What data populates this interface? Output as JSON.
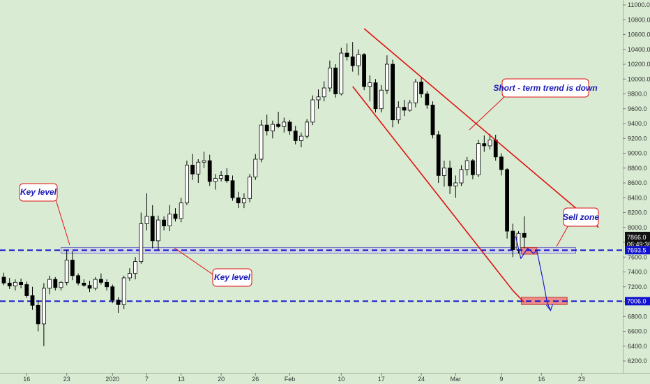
{
  "chart_data": {
    "type": "candlestick",
    "y_ticks": [
      6200,
      6400,
      6600,
      6800,
      7000,
      7200,
      7400,
      7600,
      7800,
      8000,
      8200,
      8400,
      8600,
      8800,
      9000,
      9200,
      9400,
      9600,
      9800,
      10000,
      10200,
      10400,
      10600,
      10800,
      11000
    ],
    "y_tick_labels": [
      "6200.0",
      "6400.0",
      "6600.0",
      "6800.0",
      "7000.0",
      "7200.0",
      "7400.0",
      "7600.0",
      "7800.0",
      "8000.0",
      "8200.0",
      "8400.0",
      "8600.0",
      "8800.0",
      "9000.0",
      "9200.0",
      "9400.0",
      "9600.0",
      "9800.0",
      "10000.0",
      "10200.0",
      "10400.0",
      "10600.0",
      "10800.0",
      "11000.0"
    ],
    "ylim": [
      6050,
      11100
    ],
    "x_labels": [
      {
        "label": "16",
        "i": 4
      },
      {
        "label": "23",
        "i": 11
      },
      {
        "label": "2020",
        "i": 19
      },
      {
        "label": "7",
        "i": 25
      },
      {
        "label": "13",
        "i": 31
      },
      {
        "label": "20",
        "i": 38
      },
      {
        "label": "26",
        "i": 44
      },
      {
        "label": "Feb",
        "i": 50
      },
      {
        "label": "10",
        "i": 59
      },
      {
        "label": "17",
        "i": 66
      },
      {
        "label": "24",
        "i": 73
      },
      {
        "label": "Mar",
        "i": 79
      },
      {
        "label": "9",
        "i": 87
      },
      {
        "label": "16",
        "i": 94
      },
      {
        "label": "23",
        "i": 101
      }
    ],
    "candles": [
      {
        "i": 0,
        "o": 7330,
        "h": 7390,
        "l": 7220,
        "c": 7250
      },
      {
        "i": 1,
        "o": 7250,
        "h": 7320,
        "l": 7170,
        "c": 7210
      },
      {
        "i": 2,
        "o": 7210,
        "h": 7300,
        "l": 7150,
        "c": 7260
      },
      {
        "i": 3,
        "o": 7260,
        "h": 7310,
        "l": 7180,
        "c": 7230
      },
      {
        "i": 4,
        "o": 7230,
        "h": 7270,
        "l": 7050,
        "c": 7080
      },
      {
        "i": 5,
        "o": 7080,
        "h": 7200,
        "l": 6890,
        "c": 6950
      },
      {
        "i": 6,
        "o": 6950,
        "h": 7020,
        "l": 6600,
        "c": 6700
      },
      {
        "i": 7,
        "o": 6700,
        "h": 7250,
        "l": 6400,
        "c": 7180
      },
      {
        "i": 8,
        "o": 7180,
        "h": 7350,
        "l": 7100,
        "c": 7300
      },
      {
        "i": 9,
        "o": 7300,
        "h": 7330,
        "l": 7150,
        "c": 7190
      },
      {
        "i": 10,
        "o": 7190,
        "h": 7280,
        "l": 7150,
        "c": 7260
      },
      {
        "i": 11,
        "o": 7260,
        "h": 7700,
        "l": 7220,
        "c": 7560
      },
      {
        "i": 12,
        "o": 7560,
        "h": 7680,
        "l": 7290,
        "c": 7350
      },
      {
        "i": 13,
        "o": 7350,
        "h": 7380,
        "l": 7220,
        "c": 7250
      },
      {
        "i": 14,
        "o": 7250,
        "h": 7300,
        "l": 7200,
        "c": 7220
      },
      {
        "i": 15,
        "o": 7220,
        "h": 7280,
        "l": 7130,
        "c": 7180
      },
      {
        "i": 16,
        "o": 7180,
        "h": 7330,
        "l": 7150,
        "c": 7300
      },
      {
        "i": 17,
        "o": 7300,
        "h": 7380,
        "l": 7230,
        "c": 7260
      },
      {
        "i": 18,
        "o": 7260,
        "h": 7300,
        "l": 7150,
        "c": 7200
      },
      {
        "i": 19,
        "o": 7200,
        "h": 7230,
        "l": 6980,
        "c": 7020
      },
      {
        "i": 20,
        "o": 7020,
        "h": 7060,
        "l": 6850,
        "c": 6960
      },
      {
        "i": 21,
        "o": 6960,
        "h": 7350,
        "l": 6900,
        "c": 7320
      },
      {
        "i": 22,
        "o": 7320,
        "h": 7450,
        "l": 7280,
        "c": 7380
      },
      {
        "i": 23,
        "o": 7380,
        "h": 7600,
        "l": 7300,
        "c": 7540
      },
      {
        "i": 24,
        "o": 7540,
        "h": 8200,
        "l": 7510,
        "c": 8050
      },
      {
        "i": 25,
        "o": 8050,
        "h": 8460,
        "l": 7960,
        "c": 8150
      },
      {
        "i": 26,
        "o": 8150,
        "h": 8300,
        "l": 7720,
        "c": 7820
      },
      {
        "i": 27,
        "o": 7820,
        "h": 8160,
        "l": 7700,
        "c": 8100
      },
      {
        "i": 28,
        "o": 8100,
        "h": 8150,
        "l": 7960,
        "c": 8020
      },
      {
        "i": 29,
        "o": 8020,
        "h": 8300,
        "l": 7950,
        "c": 8180
      },
      {
        "i": 30,
        "o": 8180,
        "h": 8260,
        "l": 8080,
        "c": 8120
      },
      {
        "i": 31,
        "o": 8120,
        "h": 8400,
        "l": 8070,
        "c": 8330
      },
      {
        "i": 32,
        "o": 8330,
        "h": 8900,
        "l": 8300,
        "c": 8840
      },
      {
        "i": 33,
        "o": 8840,
        "h": 8990,
        "l": 8640,
        "c": 8720
      },
      {
        "i": 34,
        "o": 8720,
        "h": 8920,
        "l": 8600,
        "c": 8880
      },
      {
        "i": 35,
        "o": 8880,
        "h": 9020,
        "l": 8800,
        "c": 8900
      },
      {
        "i": 36,
        "o": 8900,
        "h": 8980,
        "l": 8560,
        "c": 8620
      },
      {
        "i": 37,
        "o": 8620,
        "h": 8720,
        "l": 8510,
        "c": 8660
      },
      {
        "i": 38,
        "o": 8660,
        "h": 8760,
        "l": 8620,
        "c": 8700
      },
      {
        "i": 39,
        "o": 8700,
        "h": 8800,
        "l": 8600,
        "c": 8630
      },
      {
        "i": 40,
        "o": 8630,
        "h": 8700,
        "l": 8360,
        "c": 8400
      },
      {
        "i": 41,
        "o": 8400,
        "h": 8480,
        "l": 8260,
        "c": 8330
      },
      {
        "i": 42,
        "o": 8330,
        "h": 8460,
        "l": 8260,
        "c": 8390
      },
      {
        "i": 43,
        "o": 8390,
        "h": 8720,
        "l": 8340,
        "c": 8680
      },
      {
        "i": 44,
        "o": 8680,
        "h": 8990,
        "l": 8640,
        "c": 8920
      },
      {
        "i": 45,
        "o": 8920,
        "h": 9450,
        "l": 8880,
        "c": 9380
      },
      {
        "i": 46,
        "o": 9380,
        "h": 9520,
        "l": 9240,
        "c": 9300
      },
      {
        "i": 47,
        "o": 9300,
        "h": 9440,
        "l": 9200,
        "c": 9390
      },
      {
        "i": 48,
        "o": 9390,
        "h": 9560,
        "l": 9340,
        "c": 9360
      },
      {
        "i": 49,
        "o": 9360,
        "h": 9480,
        "l": 9280,
        "c": 9420
      },
      {
        "i": 50,
        "o": 9420,
        "h": 9450,
        "l": 9250,
        "c": 9300
      },
      {
        "i": 51,
        "o": 9300,
        "h": 9370,
        "l": 9120,
        "c": 9170
      },
      {
        "i": 52,
        "o": 9170,
        "h": 9280,
        "l": 9080,
        "c": 9230
      },
      {
        "i": 53,
        "o": 9230,
        "h": 9460,
        "l": 9200,
        "c": 9420
      },
      {
        "i": 54,
        "o": 9420,
        "h": 9780,
        "l": 9380,
        "c": 9720
      },
      {
        "i": 55,
        "o": 9720,
        "h": 9860,
        "l": 9600,
        "c": 9760
      },
      {
        "i": 56,
        "o": 9760,
        "h": 9970,
        "l": 9700,
        "c": 9880
      },
      {
        "i": 57,
        "o": 9880,
        "h": 10250,
        "l": 9830,
        "c": 10150
      },
      {
        "i": 58,
        "o": 10150,
        "h": 10200,
        "l": 9750,
        "c": 9800
      },
      {
        "i": 59,
        "o": 9800,
        "h": 10420,
        "l": 9780,
        "c": 10350
      },
      {
        "i": 60,
        "o": 10350,
        "h": 10480,
        "l": 10250,
        "c": 10300
      },
      {
        "i": 61,
        "o": 10300,
        "h": 10500,
        "l": 10100,
        "c": 10180
      },
      {
        "i": 62,
        "o": 10180,
        "h": 10400,
        "l": 10050,
        "c": 10330
      },
      {
        "i": 63,
        "o": 10330,
        "h": 10350,
        "l": 9850,
        "c": 9900
      },
      {
        "i": 64,
        "o": 9900,
        "h": 10050,
        "l": 9700,
        "c": 9950
      },
      {
        "i": 65,
        "o": 9950,
        "h": 10000,
        "l": 9550,
        "c": 9600
      },
      {
        "i": 66,
        "o": 9600,
        "h": 9920,
        "l": 9550,
        "c": 9850
      },
      {
        "i": 67,
        "o": 9850,
        "h": 10320,
        "l": 9800,
        "c": 10200
      },
      {
        "i": 68,
        "o": 10200,
        "h": 10260,
        "l": 9350,
        "c": 9450
      },
      {
        "i": 69,
        "o": 9450,
        "h": 9700,
        "l": 9400,
        "c": 9620
      },
      {
        "i": 70,
        "o": 9620,
        "h": 9720,
        "l": 9500,
        "c": 9580
      },
      {
        "i": 71,
        "o": 9580,
        "h": 9720,
        "l": 9560,
        "c": 9680
      },
      {
        "i": 72,
        "o": 9680,
        "h": 10000,
        "l": 9620,
        "c": 9960
      },
      {
        "i": 73,
        "o": 9960,
        "h": 10020,
        "l": 9750,
        "c": 9800
      },
      {
        "i": 74,
        "o": 9800,
        "h": 9840,
        "l": 9600,
        "c": 9650
      },
      {
        "i": 75,
        "o": 9650,
        "h": 9700,
        "l": 9200,
        "c": 9250
      },
      {
        "i": 76,
        "o": 9250,
        "h": 9300,
        "l": 8600,
        "c": 8700
      },
      {
        "i": 77,
        "o": 8700,
        "h": 8900,
        "l": 8550,
        "c": 8800
      },
      {
        "i": 78,
        "o": 8800,
        "h": 8900,
        "l": 8450,
        "c": 8560
      },
      {
        "i": 79,
        "o": 8560,
        "h": 8700,
        "l": 8400,
        "c": 8600
      },
      {
        "i": 80,
        "o": 8600,
        "h": 8840,
        "l": 8560,
        "c": 8780
      },
      {
        "i": 81,
        "o": 8780,
        "h": 8950,
        "l": 8700,
        "c": 8900
      },
      {
        "i": 82,
        "o": 8900,
        "h": 8920,
        "l": 8650,
        "c": 8710
      },
      {
        "i": 83,
        "o": 8710,
        "h": 9180,
        "l": 8680,
        "c": 9130
      },
      {
        "i": 84,
        "o": 9130,
        "h": 9240,
        "l": 9020,
        "c": 9100
      },
      {
        "i": 85,
        "o": 9100,
        "h": 9260,
        "l": 9050,
        "c": 9180
      },
      {
        "i": 86,
        "o": 9180,
        "h": 9250,
        "l": 8900,
        "c": 8950
      },
      {
        "i": 87,
        "o": 8950,
        "h": 9000,
        "l": 8700,
        "c": 8780
      },
      {
        "i": 88,
        "o": 8780,
        "h": 8800,
        "l": 7850,
        "c": 7950
      },
      {
        "i": 89,
        "o": 7950,
        "h": 8050,
        "l": 7600,
        "c": 7700
      },
      {
        "i": 90,
        "o": 7700,
        "h": 7950,
        "l": 7650,
        "c": 7920
      },
      {
        "i": 91,
        "o": 7920,
        "h": 8150,
        "l": 7720,
        "c": 7866
      }
    ],
    "trendlines": [
      {
        "name": "upper",
        "from": [
          63,
          10680
        ],
        "to": [
          104,
          8000
        ],
        "color": "#e01010"
      },
      {
        "name": "lower",
        "from": [
          61,
          9900
        ],
        "to": [
          89,
          7150
        ],
        "color": "#e01010"
      },
      {
        "name": "lower-ext",
        "from": [
          89,
          7150
        ],
        "to": [
          91,
          6990
        ],
        "color": "#e01010"
      }
    ],
    "horizontal_levels": [
      {
        "name": "key-level",
        "price": 7693.5,
        "label": "7693.5",
        "color": "#1010d0"
      },
      {
        "name": "support",
        "price": 7006,
        "label": "7006.0",
        "color": "#1010d0"
      }
    ],
    "key_level_zone": {
      "from_i": 10,
      "to_i": 100,
      "low": 7650,
      "high": 7730
    },
    "sell_zones": [
      {
        "from_i": 90.5,
        "to_i": 93.2,
        "low": 7640,
        "high": 7730
      },
      {
        "from_i": 90.5,
        "to_i": 98.5,
        "low": 6960,
        "high": 7060
      }
    ],
    "projection_path": [
      [
        89.5,
        7880
      ],
      [
        90.4,
        7580
      ],
      [
        91.6,
        7720
      ],
      [
        92.6,
        7650
      ],
      [
        93.2,
        7690
      ],
      [
        94.3,
        7280
      ],
      [
        95.0,
        6990
      ],
      [
        95.6,
        6880
      ]
    ],
    "current_price": {
      "value": "7866.0",
      "timer": "06:49:36"
    },
    "annotations": [
      {
        "name": "key-level-top",
        "text": "Key level"
      },
      {
        "name": "key-level-bottom",
        "text": "Key level"
      },
      {
        "name": "trend-note",
        "text": "Short - term trend is down"
      },
      {
        "name": "sell-zone",
        "text": "Sell zone"
      }
    ],
    "colors": {
      "background": "#d9ecd3",
      "bull": "#ffffff",
      "bear": "#000000",
      "trend": "#e01010",
      "level": "#1010d0",
      "sell_zone": "#f07a7a",
      "callout_border": "#e01010",
      "callout_text": "#1a1ab8"
    }
  }
}
